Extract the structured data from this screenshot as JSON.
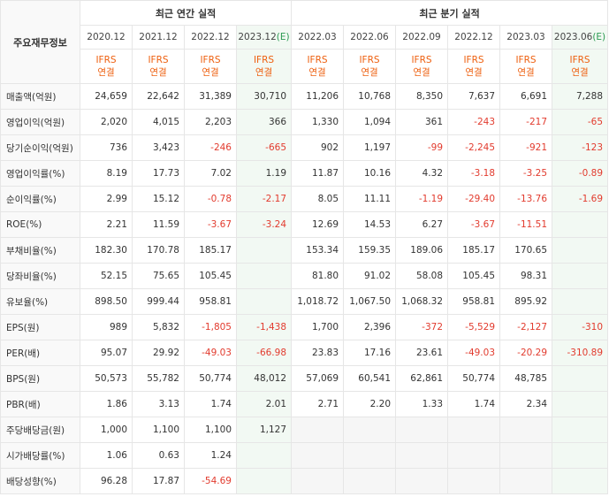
{
  "header": {
    "corner_label": "주요재무정보",
    "annual_title": "최근 연간 실적",
    "quarter_title": "최근 분기 실적",
    "annual_periods": [
      "2020.12",
      "2021.12",
      "2022.12",
      "2023.12"
    ],
    "annual_estimate_mark": "(E)",
    "quarter_periods": [
      "2022.03",
      "2022.06",
      "2022.09",
      "2022.12",
      "2023.03",
      "2023.06"
    ],
    "quarter_estimate_mark": "(E)",
    "basis_line1": "IFRS",
    "basis_line2": "연결"
  },
  "rows": [
    {
      "label": "매출액(억원)",
      "annual": [
        "24,659",
        "22,642",
        "31,389",
        "30,710"
      ],
      "quarter": [
        "11,206",
        "10,768",
        "8,350",
        "7,637",
        "6,691",
        "7,288"
      ]
    },
    {
      "label": "영업이익(억원)",
      "annual": [
        "2,020",
        "4,015",
        "2,203",
        "366"
      ],
      "quarter": [
        "1,330",
        "1,094",
        "361",
        "-243",
        "-217",
        "-65"
      ]
    },
    {
      "label": "당기순이익(억원)",
      "annual": [
        "736",
        "3,423",
        "-246",
        "-665"
      ],
      "quarter": [
        "902",
        "1,197",
        "-99",
        "-2,245",
        "-921",
        "-123"
      ]
    },
    {
      "label": "영업이익률(%)",
      "annual": [
        "8.19",
        "17.73",
        "7.02",
        "1.19"
      ],
      "quarter": [
        "11.87",
        "10.16",
        "4.32",
        "-3.18",
        "-3.25",
        "-0.89"
      ]
    },
    {
      "label": "순이익률(%)",
      "annual": [
        "2.99",
        "15.12",
        "-0.78",
        "-2.17"
      ],
      "quarter": [
        "8.05",
        "11.11",
        "-1.19",
        "-29.40",
        "-13.76",
        "-1.69"
      ]
    },
    {
      "label": "ROE(%)",
      "annual": [
        "2.21",
        "11.59",
        "-3.67",
        "-3.24"
      ],
      "quarter": [
        "12.69",
        "14.53",
        "6.27",
        "-3.67",
        "-11.51",
        ""
      ]
    },
    {
      "label": "부채비율(%)",
      "annual": [
        "182.30",
        "170.78",
        "185.17",
        ""
      ],
      "quarter": [
        "153.34",
        "159.35",
        "189.06",
        "185.17",
        "170.65",
        ""
      ]
    },
    {
      "label": "당좌비율(%)",
      "annual": [
        "52.15",
        "75.65",
        "105.45",
        ""
      ],
      "quarter": [
        "81.80",
        "91.02",
        "58.08",
        "105.45",
        "98.31",
        ""
      ]
    },
    {
      "label": "유보율(%)",
      "annual": [
        "898.50",
        "999.44",
        "958.81",
        ""
      ],
      "quarter": [
        "1,018.72",
        "1,067.50",
        "1,068.32",
        "958.81",
        "895.92",
        ""
      ]
    },
    {
      "label": "EPS(원)",
      "annual": [
        "989",
        "5,832",
        "-1,805",
        "-1,438"
      ],
      "quarter": [
        "1,700",
        "2,396",
        "-372",
        "-5,529",
        "-2,127",
        "-310"
      ]
    },
    {
      "label": "PER(배)",
      "annual": [
        "95.07",
        "29.92",
        "-49.03",
        "-66.98"
      ],
      "quarter": [
        "23.83",
        "17.16",
        "23.61",
        "-49.03",
        "-20.29",
        "-310.89"
      ]
    },
    {
      "label": "BPS(원)",
      "annual": [
        "50,573",
        "55,782",
        "50,774",
        "48,012"
      ],
      "quarter": [
        "57,069",
        "60,541",
        "62,861",
        "50,774",
        "48,785",
        ""
      ]
    },
    {
      "label": "PBR(배)",
      "annual": [
        "1.86",
        "3.13",
        "1.74",
        "2.01"
      ],
      "quarter": [
        "2.71",
        "2.20",
        "1.33",
        "1.74",
        "2.34",
        ""
      ]
    },
    {
      "label": "주당배당금(원)",
      "annual": [
        "1,000",
        "1,100",
        "1,100",
        "1,127"
      ],
      "quarter": [
        "",
        "",
        "",
        "",
        "",
        ""
      ]
    },
    {
      "label": "시가배당률(%)",
      "annual": [
        "1.06",
        "0.63",
        "1.24",
        ""
      ],
      "quarter": [
        "",
        "",
        "",
        "",
        "",
        ""
      ]
    },
    {
      "label": "배당성향(%)",
      "annual": [
        "96.28",
        "17.87",
        "-54.69",
        ""
      ],
      "quarter": [
        "",
        "",
        "",
        "",
        "",
        ""
      ]
    }
  ],
  "colors": {
    "negative": "#e23b2e",
    "basis": "#ee6010",
    "estimate_mark": "#2c9a52",
    "estimate_bg": "#f2f9f3"
  }
}
